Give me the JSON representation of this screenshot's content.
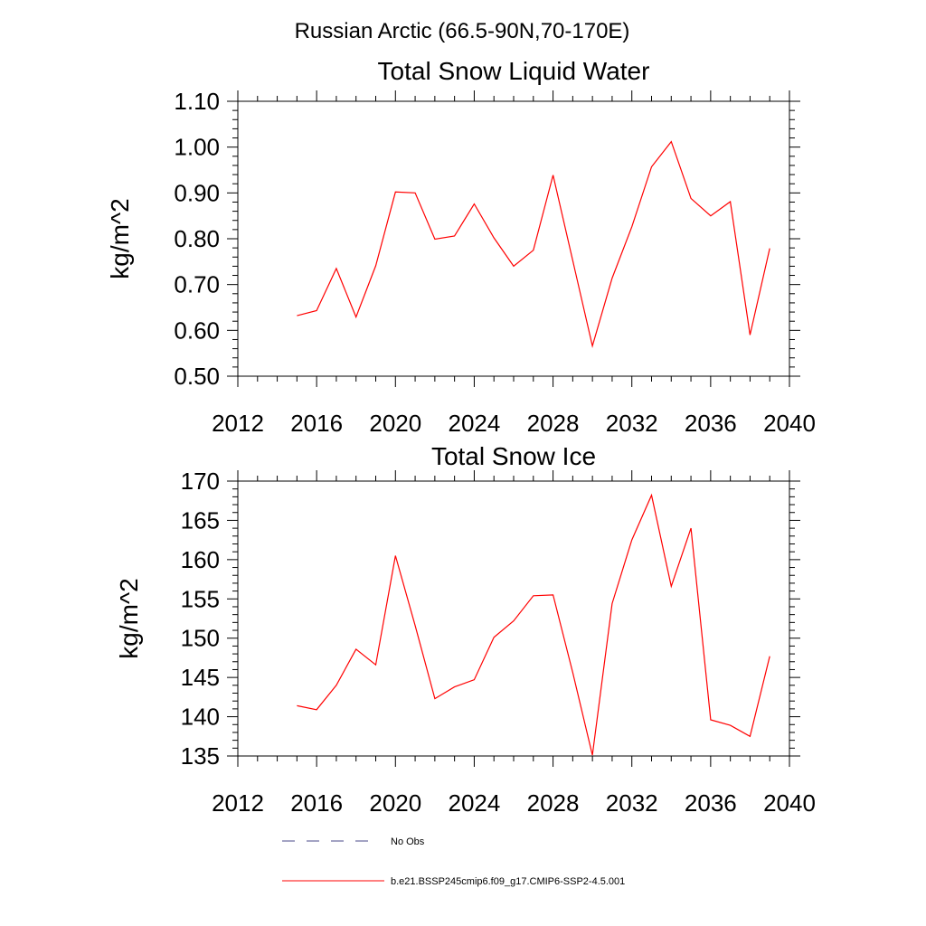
{
  "figure": {
    "title": "Russian Arctic (66.5-90N,70-170E)"
  },
  "legend": {
    "items": [
      {
        "label": "No Obs",
        "color": "#4a4a8a",
        "style": "dashed"
      },
      {
        "label": "b.e21.BSSP245cmip6.f09_g17.CMIP6-SSP2-4.5.001",
        "color": "#ff0000",
        "style": "solid"
      }
    ]
  },
  "chart_data": [
    {
      "type": "line",
      "title": "Total Snow Liquid Water",
      "xlabel": "",
      "ylabel": "kg/m^2",
      "xlim": [
        2012,
        2040
      ],
      "ylim": [
        0.5,
        1.1
      ],
      "xticks": [
        2012,
        2016,
        2020,
        2024,
        2028,
        2032,
        2036,
        2040
      ],
      "xtick_labels": [
        "2012",
        "2016",
        "2020",
        "2024",
        "2028",
        "2032",
        "2036",
        "2040"
      ],
      "yticks": [
        0.5,
        0.6,
        0.7,
        0.8,
        0.9,
        1.0,
        1.1
      ],
      "ytick_labels": [
        "0.50",
        "0.60",
        "0.70",
        "0.80",
        "0.90",
        "1.00",
        "1.10"
      ],
      "grid": false,
      "series": [
        {
          "name": "b.e21.BSSP245cmip6.f09_g17.CMIP6-SSP2-4.5.001",
          "color": "#ff0000",
          "x": [
            2015,
            2016,
            2017,
            2018,
            2019,
            2020,
            2021,
            2022,
            2023,
            2024,
            2025,
            2026,
            2027,
            2028,
            2029,
            2030,
            2031,
            2032,
            2033,
            2034,
            2035,
            2036,
            2037,
            2038,
            2039
          ],
          "y": [
            0.632,
            0.643,
            0.735,
            0.629,
            0.741,
            0.902,
            0.9,
            0.799,
            0.806,
            0.876,
            0.802,
            0.74,
            0.775,
            0.939,
            0.752,
            0.566,
            0.714,
            0.826,
            0.957,
            1.012,
            0.888,
            0.85,
            0.881,
            0.59,
            0.779
          ]
        }
      ]
    },
    {
      "type": "line",
      "title": "Total Snow Ice",
      "xlabel": "",
      "ylabel": "kg/m^2",
      "xlim": [
        2012,
        2040
      ],
      "ylim": [
        135,
        170
      ],
      "xticks": [
        2012,
        2016,
        2020,
        2024,
        2028,
        2032,
        2036,
        2040
      ],
      "xtick_labels": [
        "2012",
        "2016",
        "2020",
        "2024",
        "2028",
        "2032",
        "2036",
        "2040"
      ],
      "yticks": [
        135,
        140,
        145,
        150,
        155,
        160,
        165,
        170
      ],
      "ytick_labels": [
        "135",
        "140",
        "145",
        "150",
        "155",
        "160",
        "165",
        "170"
      ],
      "grid": false,
      "series": [
        {
          "name": "b.e21.BSSP245cmip6.f09_g17.CMIP6-SSP2-4.5.001",
          "color": "#ff0000",
          "x": [
            2015,
            2016,
            2017,
            2018,
            2019,
            2020,
            2021,
            2022,
            2023,
            2024,
            2025,
            2026,
            2027,
            2028,
            2029,
            2030,
            2031,
            2032,
            2033,
            2034,
            2035,
            2036,
            2037,
            2038,
            2039
          ],
          "y": [
            141.4,
            140.9,
            144.0,
            148.6,
            146.6,
            160.5,
            151.6,
            142.3,
            143.8,
            144.7,
            150.1,
            152.2,
            155.4,
            155.5,
            145.6,
            135.1,
            154.4,
            162.5,
            168.2,
            156.6,
            164.0,
            139.6,
            138.9,
            137.5,
            147.7
          ]
        }
      ]
    }
  ]
}
